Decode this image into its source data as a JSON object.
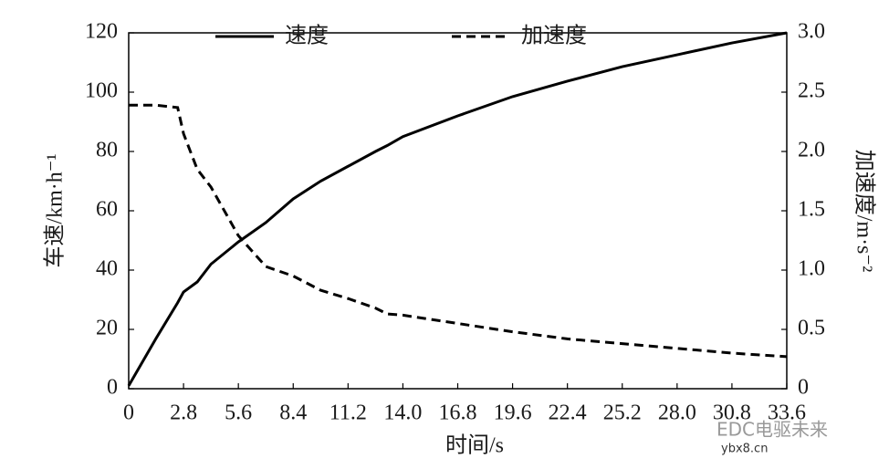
{
  "chart_data": {
    "type": "line",
    "x_label": "时间/s",
    "y_label": "车速/km·h⁻¹",
    "y2_label": "加速度/m·s⁻²",
    "x": [
      0,
      1.4,
      2.5,
      2.8,
      3.5,
      4.2,
      5.6,
      7.0,
      8.4,
      9.8,
      11.2,
      12.6,
      13.2,
      14.0,
      16.8,
      19.6,
      22.4,
      25.2,
      28.0,
      30.8,
      33.6
    ],
    "series": [
      {
        "name": "速度",
        "color": "#000000",
        "line_style": "solid",
        "values": [
          1,
          17,
          29,
          32.6,
          36,
          42,
          49.5,
          56,
          64,
          70,
          75,
          80,
          82,
          85,
          92,
          98.5,
          103.7,
          108.6,
          112.6,
          116.6,
          120
        ]
      },
      {
        "name": "加速度",
        "color": "#000000",
        "line_style": "dashed",
        "axis": "y2",
        "values": [
          2.39,
          2.39,
          2.37,
          2.15,
          1.85,
          1.7,
          1.29,
          1.03,
          0.95,
          0.83,
          0.76,
          0.68,
          0.63,
          0.62,
          0.55,
          0.48,
          0.42,
          0.38,
          0.34,
          0.3,
          0.27
        ]
      }
    ],
    "xlim": [
      0,
      33.6
    ],
    "xticks": [
      0,
      2.8,
      5.6,
      8.4,
      11.2,
      {
        "value": 14,
        "label": "14.0"
      },
      16.8,
      19.6,
      22.4,
      25.2,
      {
        "value": 28,
        "label": "28.0"
      },
      30.8,
      33.6
    ],
    "ylim": [
      0,
      120
    ],
    "yticks": [
      0,
      20,
      40,
      60,
      80,
      100,
      120
    ],
    "y2lim": [
      0,
      3
    ],
    "y2ticks": [
      0,
      0.5,
      {
        "value": 1,
        "label": "1.0"
      },
      1.5,
      {
        "value": 2,
        "label": "2.0"
      },
      2.5,
      {
        "value": 3,
        "label": "3.0"
      }
    ],
    "grid": false,
    "legend": "top"
  },
  "watermark": "EDC电驱未来",
  "source": "ybx8.cn"
}
